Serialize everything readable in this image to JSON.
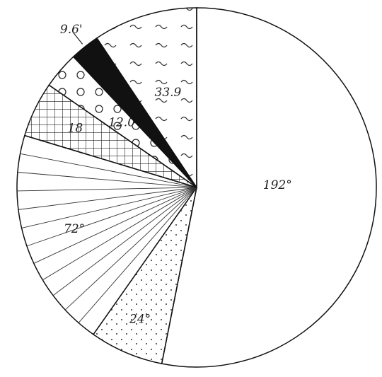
{
  "chart_data": {
    "type": "pie",
    "values": [
      192,
      24,
      72,
      18,
      12,
      9.6,
      33.9
    ],
    "value_labels": [
      "192°",
      "24°",
      "72°",
      "18",
      "12.0",
      "9.6'",
      "33.9"
    ],
    "color": "#ffffff"
  }
}
